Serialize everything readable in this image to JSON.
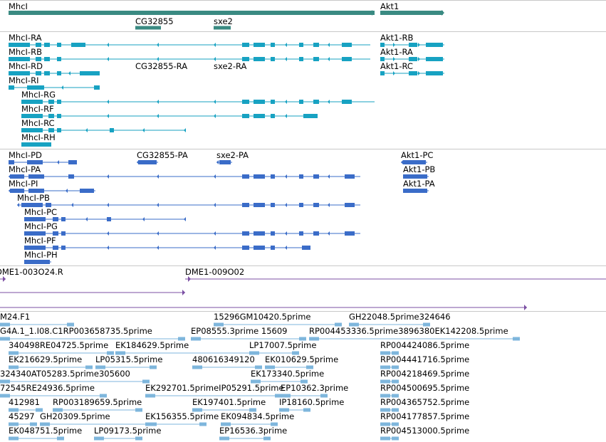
{
  "colors": {
    "gene": "#3a8a82",
    "mrna": "#17a2c2",
    "cds": "#3a6cc8",
    "primer": "#7b4fa3",
    "est": "#7eb6dc",
    "separator": "#c8c8c8"
  },
  "tracks": {
    "genes": {
      "features": [
        {
          "label": "MhcI",
          "style": "gene",
          "glyph": "bar-arrow-right"
        },
        {
          "label": "Akt1",
          "style": "gene",
          "glyph": "bar-arrow-right"
        },
        {
          "label": "CG32855",
          "style": "gene",
          "glyph": "bar"
        },
        {
          "label": "sxe2",
          "style": "gene",
          "glyph": "bar"
        }
      ]
    },
    "transcripts": {
      "features": [
        {
          "label": "MhcI-RA",
          "style": "mrna"
        },
        {
          "label": "Akt1-RB",
          "style": "mrna"
        },
        {
          "label": "MhcI-RB",
          "style": "mrna"
        },
        {
          "label": "Akt1-RA",
          "style": "mrna"
        },
        {
          "label": "MhcI-RD",
          "style": "mrna"
        },
        {
          "label": "CG32855-RA",
          "style": "mrna"
        },
        {
          "label": "sxe2-RA",
          "style": "mrna"
        },
        {
          "label": "Akt1-RC",
          "style": "mrna"
        },
        {
          "label": "MhcI-RI",
          "style": "mrna"
        },
        {
          "label": "MhcI-RG",
          "style": "mrna"
        },
        {
          "label": "MhcI-RF",
          "style": "mrna"
        },
        {
          "label": "MhcI-RC",
          "style": "mrna"
        },
        {
          "label": "MhcI-RH",
          "style": "mrna"
        }
      ]
    },
    "proteins": {
      "features": [
        {
          "label": "MhcI-PD",
          "style": "cds"
        },
        {
          "label": "CG32855-PA",
          "style": "cds"
        },
        {
          "label": "sxe2-PA",
          "style": "cds"
        },
        {
          "label": "Akt1-PC",
          "style": "cds"
        },
        {
          "label": "MhcI-PA",
          "style": "cds"
        },
        {
          "label": "Akt1-PB",
          "style": "cds"
        },
        {
          "label": "MhcI-PI",
          "style": "cds"
        },
        {
          "label": "Akt1-PA",
          "style": "cds"
        },
        {
          "label": "MhcI-PB",
          "style": "cds"
        },
        {
          "label": "MhcI-PC",
          "style": "cds"
        },
        {
          "label": "MhcI-PG",
          "style": "cds"
        },
        {
          "label": "MhcI-PF",
          "style": "cds"
        },
        {
          "label": "MhcI-PH",
          "style": "cds"
        }
      ]
    },
    "primers": {
      "features": [
        {
          "label": "DME1-003O24.R",
          "style": "primer"
        },
        {
          "label": "DME1-009O02",
          "style": "primer"
        },
        {
          "label": "",
          "style": "primer"
        }
      ]
    },
    "ests": {
      "features": [
        {
          "label": "M24.F1"
        },
        {
          "label": "15296GM10420.5prime"
        },
        {
          "label": "GH22048.5prime324646"
        },
        {
          "label": "G4A.1_1.I08.C1RP003658735.5prime"
        },
        {
          "label": "EP08555.3prime 15609"
        },
        {
          "label": "RP004453336.5prime3896380EK142208.5prime"
        },
        {
          "label": "340498RE04725.5prime"
        },
        {
          "label": "EK184629.5prime"
        },
        {
          "label": "LP17007.5prime"
        },
        {
          "label": "RP004424086.5prime"
        },
        {
          "label": "EK216629.5prime"
        },
        {
          "label": "LP05315.5prime"
        },
        {
          "label": "480616349120"
        },
        {
          "label": "EK010629.5prime"
        },
        {
          "label": "RP004441716.5prime"
        },
        {
          "label": "324340AT05283.5prime305600"
        },
        {
          "label": "EK173340.5prime"
        },
        {
          "label": "RP004218469.5prime"
        },
        {
          "label": "72545RE24936.5prime"
        },
        {
          "label": "EK292701.5primeIP05291.5prime"
        },
        {
          "label": "EP10362.3prime"
        },
        {
          "label": "RP004500695.5prime"
        },
        {
          "label": "412981"
        },
        {
          "label": "RP003189659.5prime"
        },
        {
          "label": "EK197401.5prime"
        },
        {
          "label": "IP18160.5prime"
        },
        {
          "label": "RP004365752.5prime"
        },
        {
          "label": "45297"
        },
        {
          "label": "GH20309.5prime"
        },
        {
          "label": "EK156355.5prime"
        },
        {
          "label": "EK094834.5prime"
        },
        {
          "label": "RP004177857.5prime"
        },
        {
          "label": "EK048751.5prime"
        },
        {
          "label": "LP09173.5prime"
        },
        {
          "label": "EP16536.3prime"
        },
        {
          "label": "RP004513000.5prime"
        }
      ]
    }
  }
}
